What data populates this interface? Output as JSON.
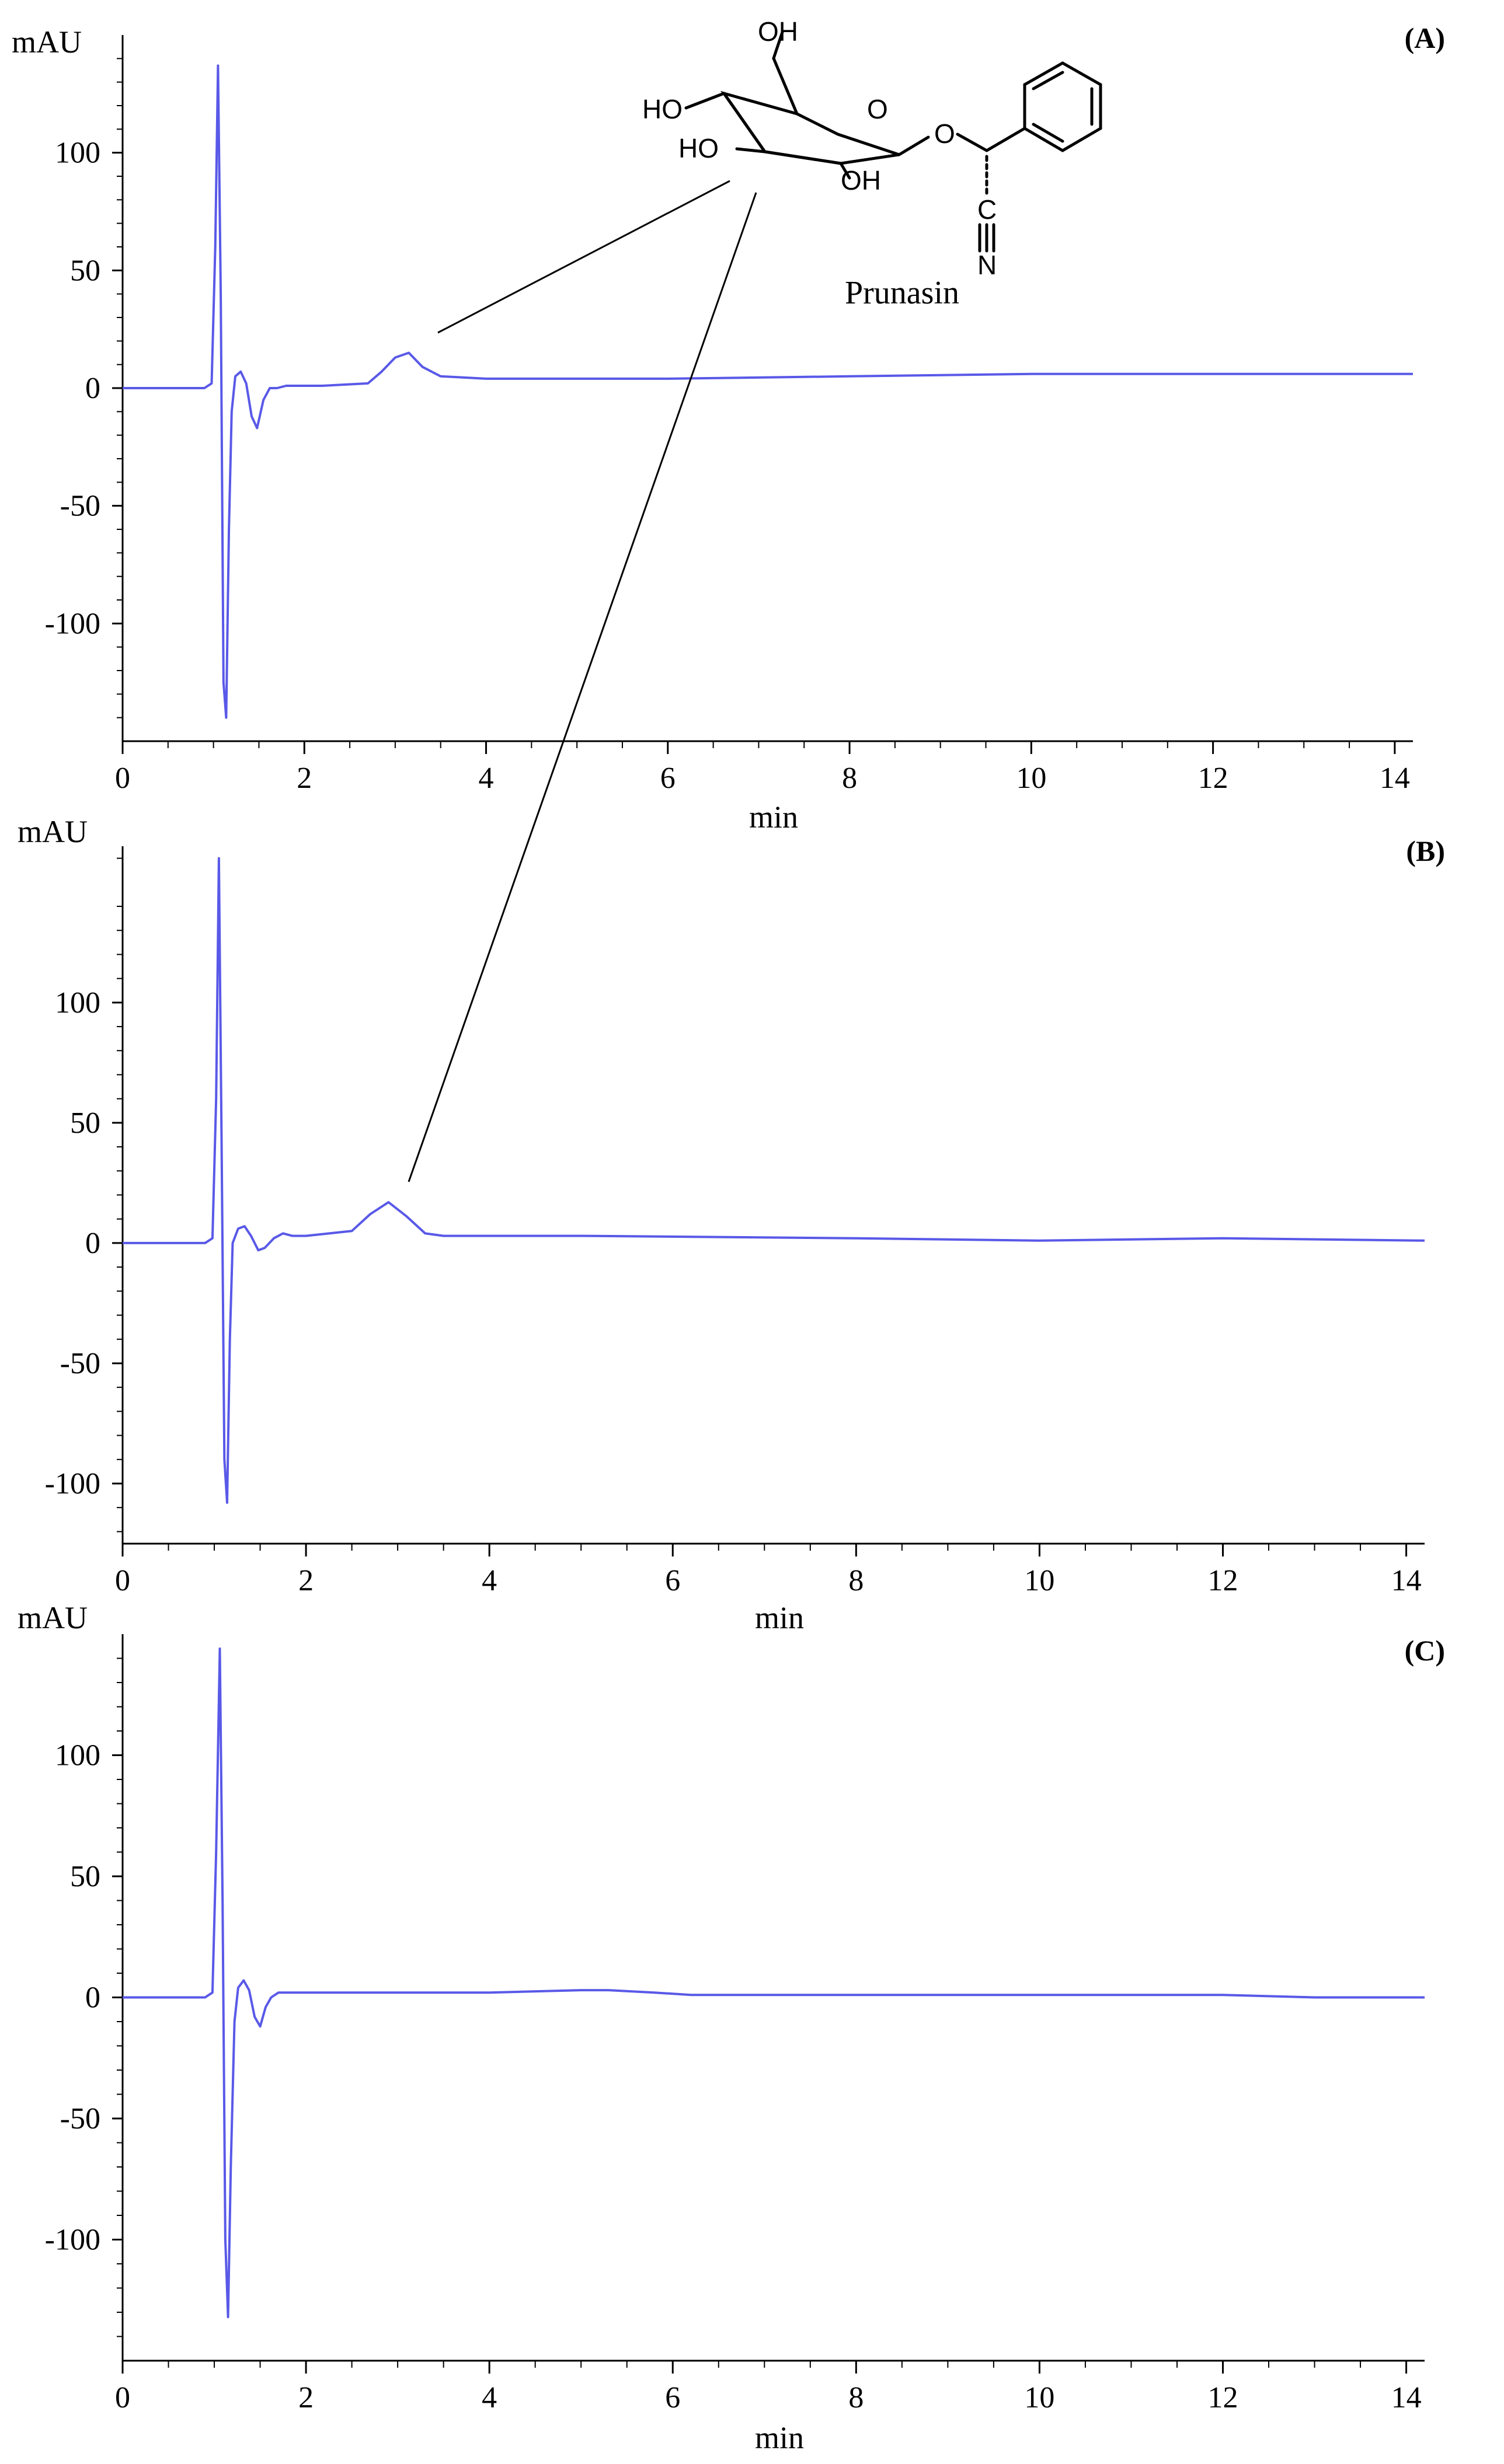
{
  "figure": {
    "compound": {
      "name": "Prunasin",
      "atom_labels": [
        "OH",
        "HO",
        "O",
        "HO",
        "OH",
        "O",
        "C",
        "N"
      ]
    },
    "trace_color": "#5959e8"
  },
  "chart_data": [
    {
      "type": "line",
      "panel_label": "(A)",
      "ylabel": "mAU",
      "xlabel": "min",
      "xlim": [
        0,
        14.2
      ],
      "ylim": [
        -150,
        150
      ],
      "x_ticks": [
        "0",
        "2",
        "4",
        "6",
        "8",
        "10",
        "12",
        "14"
      ],
      "y_ticks": [
        {
          "v": 100,
          "t": "100"
        },
        {
          "v": 50,
          "t": "50"
        },
        {
          "v": 0,
          "t": "0"
        },
        {
          "v": -50,
          "t": "-50"
        },
        {
          "v": -100,
          "t": "-100"
        }
      ],
      "series": [
        {
          "x": [
            0,
            0.9,
            0.98,
            1.02,
            1.05,
            1.08,
            1.11,
            1.14,
            1.17,
            1.2,
            1.24,
            1.3,
            1.36,
            1.42,
            1.48,
            1.55,
            1.62,
            1.7,
            1.8,
            2.2,
            2.7,
            2.85,
            3.0,
            3.15,
            3.3,
            3.5,
            4.0,
            6.0,
            8.0,
            10.0,
            12.0,
            14.2
          ],
          "y": [
            0,
            0,
            2,
            60,
            137,
            40,
            -125,
            -140,
            -60,
            -10,
            5,
            7,
            2,
            -12,
            -17,
            -5,
            0,
            0,
            1,
            1,
            2,
            7,
            13,
            15,
            9,
            5,
            4,
            4,
            5,
            6,
            6,
            6
          ]
        }
      ]
    },
    {
      "type": "line",
      "panel_label": "(B)",
      "ylabel": "mAU",
      "xlabel": "min",
      "xlim": [
        0,
        14.2
      ],
      "ylim": [
        -125,
        165
      ],
      "x_ticks": [
        "0",
        "2",
        "4",
        "6",
        "8",
        "10",
        "12",
        "14"
      ],
      "y_ticks": [
        {
          "v": 100,
          "t": "100"
        },
        {
          "v": 50,
          "t": "50"
        },
        {
          "v": 0,
          "t": "0"
        },
        {
          "v": -50,
          "t": "-50"
        },
        {
          "v": -100,
          "t": "-100"
        }
      ],
      "series": [
        {
          "x": [
            0,
            0.9,
            0.98,
            1.02,
            1.05,
            1.08,
            1.11,
            1.14,
            1.17,
            1.2,
            1.26,
            1.33,
            1.4,
            1.48,
            1.55,
            1.65,
            1.75,
            1.85,
            2.0,
            2.5,
            2.7,
            2.9,
            3.1,
            3.3,
            3.5,
            5.0,
            8.0,
            10.0,
            12.0,
            14.2
          ],
          "y": [
            0,
            0,
            2,
            60,
            160,
            40,
            -90,
            -108,
            -40,
            0,
            6,
            7,
            3,
            -3,
            -2,
            2,
            4,
            3,
            3,
            5,
            12,
            17,
            11,
            4,
            3,
            3,
            2,
            1,
            2,
            1
          ]
        }
      ]
    },
    {
      "type": "line",
      "panel_label": "(C)",
      "ylabel": "mAU",
      "xlabel": "min",
      "xlim": [
        0,
        14.2
      ],
      "ylim": [
        -150,
        150
      ],
      "x_ticks": [
        "0",
        "2",
        "4",
        "6",
        "8",
        "10",
        "12",
        "14"
      ],
      "y_ticks": [
        {
          "v": 100,
          "t": "100"
        },
        {
          "v": 50,
          "t": "50"
        },
        {
          "v": 0,
          "t": "0"
        },
        {
          "v": -50,
          "t": "-50"
        },
        {
          "v": -100,
          "t": "-100"
        }
      ],
      "series": [
        {
          "x": [
            0,
            0.9,
            0.98,
            1.02,
            1.06,
            1.09,
            1.12,
            1.15,
            1.18,
            1.22,
            1.26,
            1.32,
            1.38,
            1.44,
            1.5,
            1.56,
            1.62,
            1.7,
            2.0,
            3.0,
            4.0,
            5.0,
            5.3,
            5.8,
            6.2,
            8.0,
            10.0,
            12.0,
            13.0,
            14.2
          ],
          "y": [
            0,
            0,
            2,
            60,
            144,
            40,
            -100,
            -132,
            -70,
            -10,
            4,
            7,
            3,
            -8,
            -12,
            -4,
            0,
            2,
            2,
            2,
            2,
            3,
            3,
            2,
            1,
            1,
            1,
            1,
            0,
            0
          ]
        }
      ]
    }
  ]
}
